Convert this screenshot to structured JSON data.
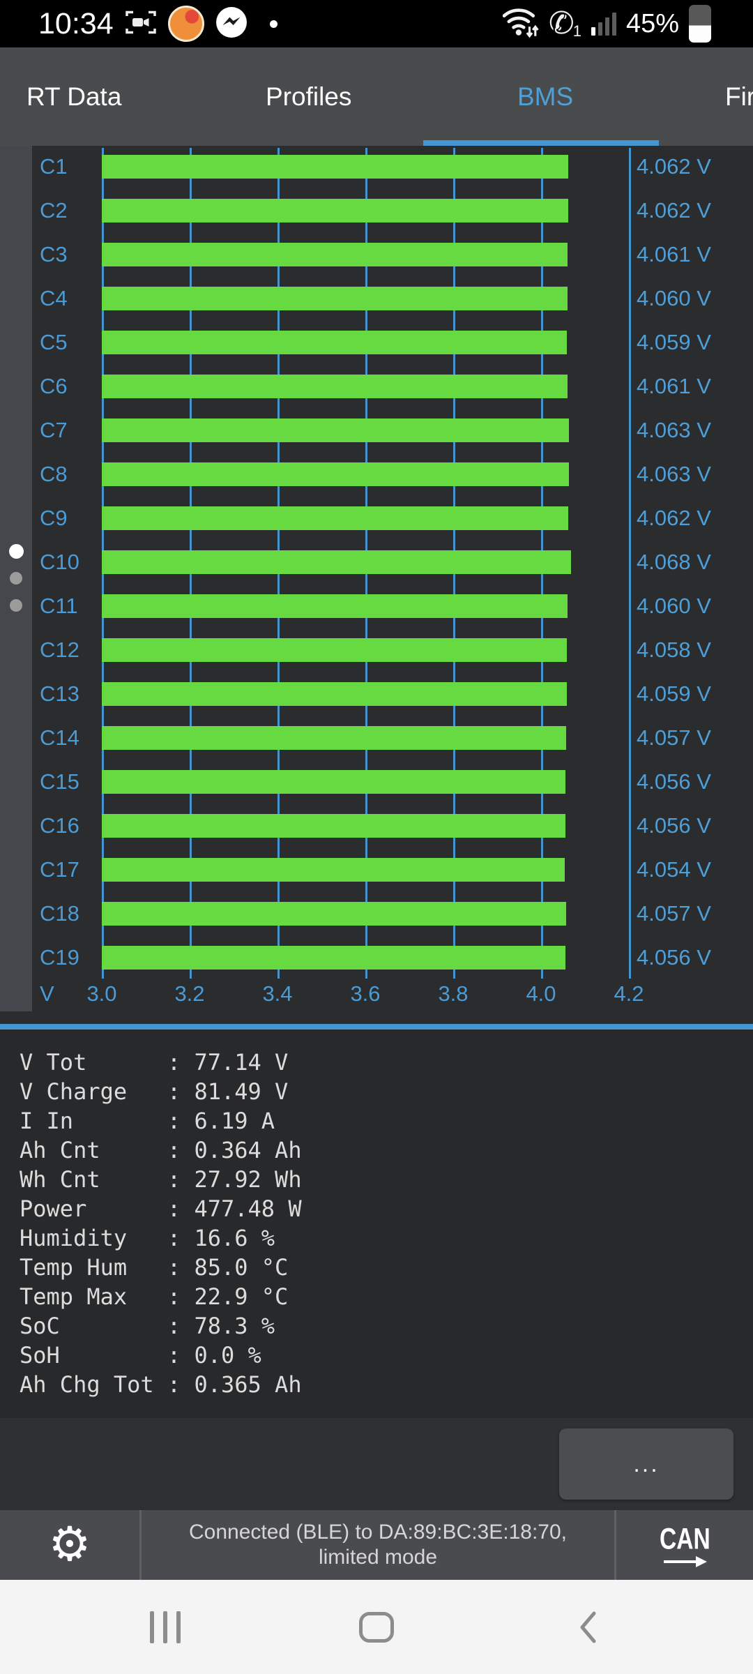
{
  "status_bar": {
    "time": "10:34",
    "battery_percent": "45%",
    "icons_left": [
      "screen-record-icon",
      "app-notification-icon",
      "messenger-icon",
      "notification-dot"
    ],
    "icons_right": [
      "wifi-icon",
      "wifi-calling-icon",
      "signal-icon",
      "battery-icon"
    ]
  },
  "tabs": {
    "items": [
      {
        "label": "RT Data"
      },
      {
        "label": "Profiles"
      },
      {
        "label": "BMS"
      },
      {
        "label": "Fir"
      }
    ],
    "active_index": 2,
    "accent_color": "#4da0d8"
  },
  "page_indicator": {
    "pages": 3,
    "active": 0
  },
  "chart_data": {
    "type": "bar",
    "orientation": "horizontal",
    "categories": [
      "C1",
      "C2",
      "C3",
      "C4",
      "C5",
      "C6",
      "C7",
      "C8",
      "C9",
      "C10",
      "C11",
      "C12",
      "C13",
      "C14",
      "C15",
      "C16",
      "C17",
      "C18",
      "C19"
    ],
    "values": [
      4.062,
      4.062,
      4.061,
      4.06,
      4.059,
      4.061,
      4.063,
      4.063,
      4.062,
      4.068,
      4.06,
      4.058,
      4.059,
      4.057,
      4.056,
      4.056,
      4.054,
      4.057,
      4.056
    ],
    "value_unit": "V",
    "xlabel": "V",
    "xticks": [
      "3.0",
      "3.2",
      "3.4",
      "3.6",
      "3.8",
      "4.0",
      "4.2"
    ],
    "xlim": [
      3.0,
      4.2
    ],
    "grid": true,
    "bar_color": "#68da41",
    "grid_color": "#4694cf",
    "label_color": "#4a9bd6"
  },
  "telemetry": {
    "rows": [
      {
        "label": "V Tot",
        "value": "77.14 V"
      },
      {
        "label": "V Charge",
        "value": "81.49 V"
      },
      {
        "label": "I In",
        "value": "6.19 A"
      },
      {
        "label": "Ah Cnt",
        "value": "0.364 Ah"
      },
      {
        "label": "Wh Cnt",
        "value": "27.92 Wh"
      },
      {
        "label": "Power",
        "value": "477.48 W"
      },
      {
        "label": "Humidity",
        "value": "16.6 %"
      },
      {
        "label": "Temp Hum",
        "value": "85.0 °C"
      },
      {
        "label": "Temp Max",
        "value": "22.9 °C"
      },
      {
        "label": "SoC",
        "value": "78.3 %"
      },
      {
        "label": "SoH",
        "value": "0.0 %"
      },
      {
        "label": "Ah Chg Tot",
        "value": "0.365 Ah"
      }
    ]
  },
  "actions": {
    "more_label": "..."
  },
  "toolbar": {
    "status_line1": "Connected (BLE) to DA:89:BC:3E:18:70,",
    "status_line2": "limited mode",
    "can_label": "CAN"
  }
}
